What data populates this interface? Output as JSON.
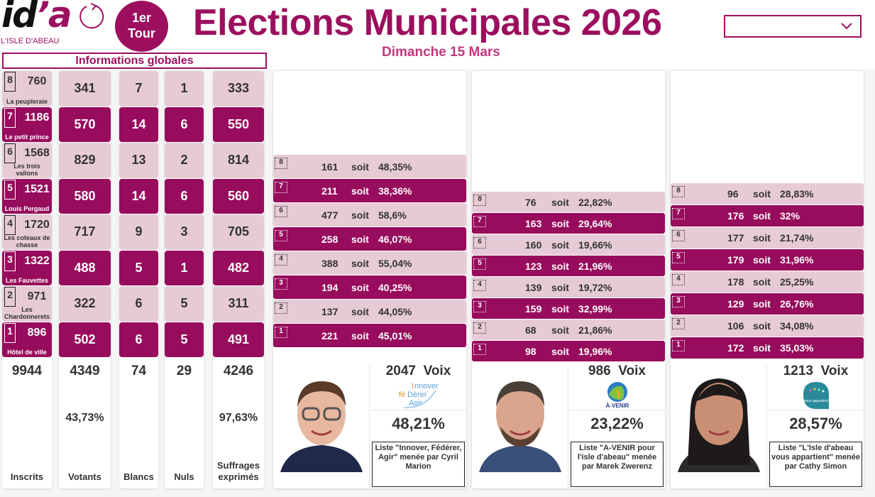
{
  "header": {
    "logo_text": "id",
    "logo_apostrophe": "’a",
    "logo_subtitle": "L'ISLE D'ABEAU",
    "tour_line1": "1er",
    "tour_line2": "Tour",
    "title": "Elections Municipales 2026",
    "subtitle": "Dimanche 15 Mars",
    "dropdown_value": ""
  },
  "global": {
    "heading": "Informations globales",
    "bureaux": [
      {
        "num": "8",
        "name": "La peupleraie",
        "inscrits": "760",
        "votants": "341",
        "blancs": "7",
        "nuls": "1",
        "exprimes": "333"
      },
      {
        "num": "7",
        "name": "Le petit prince",
        "inscrits": "1186",
        "votants": "570",
        "blancs": "14",
        "nuls": "6",
        "exprimes": "550"
      },
      {
        "num": "6",
        "name": "Les trois vallons",
        "inscrits": "1568",
        "votants": "829",
        "blancs": "13",
        "nuls": "2",
        "exprimes": "814"
      },
      {
        "num": "5",
        "name": "Louis Pergaud",
        "inscrits": "1521",
        "votants": "580",
        "blancs": "14",
        "nuls": "6",
        "exprimes": "560"
      },
      {
        "num": "4",
        "name": "Les coteaux de chasse",
        "inscrits": "1720",
        "votants": "717",
        "blancs": "9",
        "nuls": "3",
        "exprimes": "705"
      },
      {
        "num": "3",
        "name": "Les Fauvettes",
        "inscrits": "1322",
        "votants": "488",
        "blancs": "5",
        "nuls": "1",
        "exprimes": "482"
      },
      {
        "num": "2",
        "name": "Les Chardonnerets",
        "inscrits": "971",
        "votants": "322",
        "blancs": "6",
        "nuls": "5",
        "exprimes": "311"
      },
      {
        "num": "1",
        "name": "Hôtel de ville",
        "inscrits": "896",
        "votants": "502",
        "blancs": "6",
        "nuls": "5",
        "exprimes": "491"
      }
    ],
    "totals": {
      "inscrits": "9944",
      "votants": "4349",
      "blancs": "74",
      "nuls": "29",
      "exprimes": "4246",
      "votants_pct": "43,73%",
      "exprimes_pct": "97,63%"
    },
    "labels": {
      "inscrits": "Inscrits",
      "votants": "Votants",
      "blancs": "Blancs",
      "nuls": "Nuls",
      "exprimes_1": "Suffrages",
      "exprimes_2": "exprimés"
    }
  },
  "soit_label": "soit",
  "voix_label": "Voix",
  "candidates": [
    {
      "total_voix": "2047",
      "pct": "48,21%",
      "list_text": "Liste \"Innover, Fédérer, Agir\" menée par Cyril Marion",
      "logo": "innover-federer-agir-logo",
      "bureaux": [
        {
          "num": "8",
          "voix": "161",
          "pct": "48,35%"
        },
        {
          "num": "7",
          "voix": "211",
          "pct": "38,36%"
        },
        {
          "num": "6",
          "voix": "477",
          "pct": "58,6%"
        },
        {
          "num": "5",
          "voix": "258",
          "pct": "46,07%"
        },
        {
          "num": "4",
          "voix": "388",
          "pct": "55,04%"
        },
        {
          "num": "3",
          "voix": "194",
          "pct": "40,25%"
        },
        {
          "num": "2",
          "voix": "137",
          "pct": "44,05%"
        },
        {
          "num": "1",
          "voix": "221",
          "pct": "45,01%"
        }
      ]
    },
    {
      "total_voix": "986",
      "pct": "23,22%",
      "list_text": "Liste \"A-VENIR pour l'isle d'abeau\" menée par Marek Zwerenz",
      "logo": "a-venir-logo",
      "bureaux": [
        {
          "num": "8",
          "voix": "76",
          "pct": "22,82%"
        },
        {
          "num": "7",
          "voix": "163",
          "pct": "29,64%"
        },
        {
          "num": "6",
          "voix": "160",
          "pct": "19,66%"
        },
        {
          "num": "5",
          "voix": "123",
          "pct": "21,96%"
        },
        {
          "num": "4",
          "voix": "139",
          "pct": "19,72%"
        },
        {
          "num": "3",
          "voix": "159",
          "pct": "32,99%"
        },
        {
          "num": "2",
          "voix": "68",
          "pct": "21,86%"
        },
        {
          "num": "1",
          "voix": "98",
          "pct": "19,96%"
        }
      ]
    },
    {
      "total_voix": "1213",
      "pct": "28,57%",
      "list_text": "Liste \"L'Isle d'abeau vous appartient\" menée par Cathy Simon",
      "logo": "isle-vous-appartient-logo",
      "bureaux": [
        {
          "num": "8",
          "voix": "96",
          "pct": "28,83%"
        },
        {
          "num": "7",
          "voix": "176",
          "pct": "32%"
        },
        {
          "num": "6",
          "voix": "177",
          "pct": "21,74%"
        },
        {
          "num": "5",
          "voix": "179",
          "pct": "31,96%"
        },
        {
          "num": "4",
          "voix": "178",
          "pct": "25,25%"
        },
        {
          "num": "3",
          "voix": "129",
          "pct": "26,76%"
        },
        {
          "num": "2",
          "voix": "106",
          "pct": "34,08%"
        },
        {
          "num": "1",
          "voix": "172",
          "pct": "35,03%"
        }
      ]
    }
  ],
  "colors": {
    "brand": "#9c0f5f",
    "dark_row": "#970c5c",
    "light_row": "#e6cbd6",
    "subtitle": "#c0397f"
  }
}
